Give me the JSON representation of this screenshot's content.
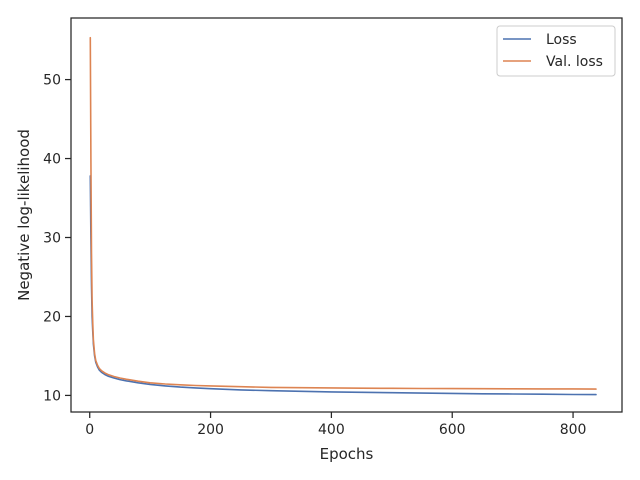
{
  "chart_data": {
    "type": "line",
    "title": "",
    "xlabel": "Epochs",
    "ylabel": "Negative log-likelihood",
    "xlim": [
      -31,
      881
    ],
    "ylim": [
      7.9,
      57.8
    ],
    "xticks": [
      0,
      200,
      400,
      600,
      800
    ],
    "yticks": [
      10,
      20,
      30,
      40,
      50
    ],
    "xtick_labels": [
      "0",
      "200",
      "400",
      "600",
      "800"
    ],
    "ytick_labels": [
      "10",
      "20",
      "30",
      "40",
      "50"
    ],
    "grid": false,
    "legend_position": "top-right",
    "series": [
      {
        "name": "Loss",
        "color": "#4c72b0",
        "x": [
          1,
          2,
          3,
          4,
          5,
          6,
          8,
          10,
          13,
          16,
          20,
          25,
          30,
          40,
          50,
          60,
          80,
          100,
          125,
          150,
          175,
          200,
          250,
          300,
          350,
          400,
          450,
          500,
          550,
          600,
          650,
          700,
          750,
          800,
          838
        ],
        "y": [
          37.8,
          30.0,
          24.0,
          20.0,
          18.0,
          16.5,
          15.0,
          14.2,
          13.6,
          13.2,
          12.9,
          12.65,
          12.45,
          12.2,
          12.0,
          11.85,
          11.6,
          11.4,
          11.2,
          11.05,
          10.95,
          10.85,
          10.7,
          10.6,
          10.52,
          10.45,
          10.4,
          10.35,
          10.3,
          10.25,
          10.2,
          10.18,
          10.15,
          10.12,
          10.1
        ]
      },
      {
        "name": "Val. loss",
        "color": "#dd8452",
        "x": [
          1,
          2,
          3,
          4,
          5,
          6,
          8,
          10,
          13,
          16,
          20,
          25,
          30,
          40,
          50,
          60,
          80,
          100,
          125,
          150,
          175,
          200,
          250,
          300,
          350,
          400,
          450,
          500,
          550,
          600,
          650,
          700,
          750,
          800,
          838
        ],
        "y": [
          55.3,
          40.0,
          28.0,
          22.0,
          19.0,
          17.0,
          15.3,
          14.4,
          13.8,
          13.4,
          13.1,
          12.85,
          12.65,
          12.4,
          12.2,
          12.05,
          11.8,
          11.6,
          11.45,
          11.35,
          11.25,
          11.2,
          11.1,
          11.02,
          10.98,
          10.95,
          10.92,
          10.9,
          10.88,
          10.86,
          10.85,
          10.84,
          10.83,
          10.82,
          10.8
        ]
      }
    ]
  }
}
